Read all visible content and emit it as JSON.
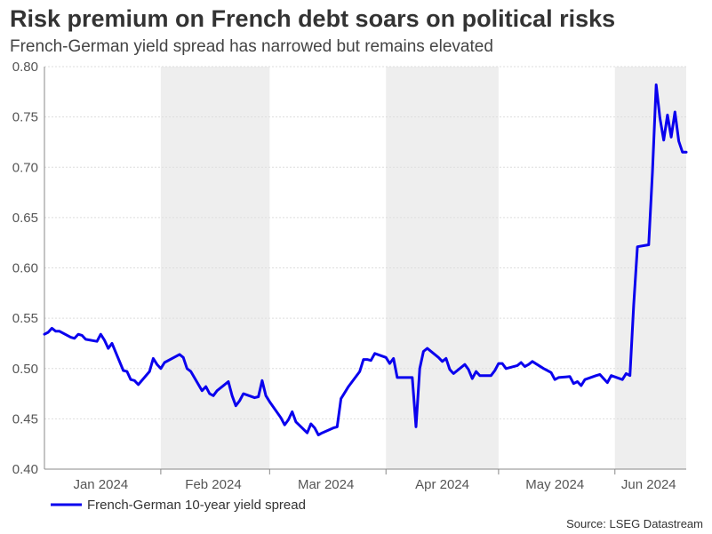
{
  "title": "Risk premium on French debt soars on political risks",
  "subtitle": "French-German yield spread has narrowed but remains elevated",
  "source": "Source: LSEG Datastream",
  "colors": {
    "line": "#0a00ee",
    "band": "#eeeeee",
    "grid": "#dddddd",
    "axis": "#888888"
  },
  "chart_data": {
    "type": "line",
    "title": "Risk premium on French debt soars on political risks",
    "subtitle": "French-German yield spread has narrowed but remains elevated",
    "xlabel": "",
    "ylabel": "",
    "x_range": [
      "2024-01-01",
      "2024-06-20"
    ],
    "ylim": [
      0.4,
      0.8
    ],
    "yticks": [
      0.4,
      0.45,
      0.5,
      0.55,
      0.6,
      0.65,
      0.7,
      0.75,
      0.8
    ],
    "ytick_labels": [
      "0.40",
      "0.45",
      "0.50",
      "0.55",
      "0.60",
      "0.65",
      "0.70",
      "0.75",
      "0.80"
    ],
    "month_labels": [
      {
        "date": "2024-01-16",
        "label": "Jan 2024"
      },
      {
        "date": "2024-02-15",
        "label": "Feb 2024"
      },
      {
        "date": "2024-03-16",
        "label": "Mar 2024"
      },
      {
        "date": "2024-04-16",
        "label": "Apr 2024"
      },
      {
        "date": "2024-05-16",
        "label": "May 2024"
      },
      {
        "date": "2024-06-10",
        "label": "Jun 2024"
      }
    ],
    "shaded_months": [
      {
        "start": "2024-02-01",
        "end": "2024-03-01"
      },
      {
        "start": "2024-04-01",
        "end": "2024-05-01"
      },
      {
        "start": "2024-06-01",
        "end": "2024-06-20"
      }
    ],
    "grid": true,
    "legend_position": "bottom-left",
    "series": [
      {
        "name": "French-German 10-year yield spread",
        "points": [
          [
            "2024-01-01",
            0.534
          ],
          [
            "2024-01-02",
            0.536
          ],
          [
            "2024-01-03",
            0.54
          ],
          [
            "2024-01-04",
            0.537
          ],
          [
            "2024-01-05",
            0.537
          ],
          [
            "2024-01-08",
            0.531
          ],
          [
            "2024-01-09",
            0.53
          ],
          [
            "2024-01-10",
            0.534
          ],
          [
            "2024-01-11",
            0.533
          ],
          [
            "2024-01-12",
            0.529
          ],
          [
            "2024-01-15",
            0.527
          ],
          [
            "2024-01-16",
            0.534
          ],
          [
            "2024-01-17",
            0.528
          ],
          [
            "2024-01-18",
            0.52
          ],
          [
            "2024-01-19",
            0.525
          ],
          [
            "2024-01-22",
            0.498
          ],
          [
            "2024-01-23",
            0.497
          ],
          [
            "2024-01-24",
            0.489
          ],
          [
            "2024-01-25",
            0.488
          ],
          [
            "2024-01-26",
            0.484
          ],
          [
            "2024-01-29",
            0.497
          ],
          [
            "2024-01-30",
            0.51
          ],
          [
            "2024-01-31",
            0.504
          ],
          [
            "2024-02-01",
            0.5
          ],
          [
            "2024-02-02",
            0.506
          ],
          [
            "2024-02-05",
            0.512
          ],
          [
            "2024-02-06",
            0.514
          ],
          [
            "2024-02-07",
            0.511
          ],
          [
            "2024-02-08",
            0.5
          ],
          [
            "2024-02-09",
            0.497
          ],
          [
            "2024-02-12",
            0.478
          ],
          [
            "2024-02-13",
            0.482
          ],
          [
            "2024-02-14",
            0.475
          ],
          [
            "2024-02-15",
            0.473
          ],
          [
            "2024-02-16",
            0.478
          ],
          [
            "2024-02-19",
            0.487
          ],
          [
            "2024-02-20",
            0.473
          ],
          [
            "2024-02-21",
            0.463
          ],
          [
            "2024-02-22",
            0.468
          ],
          [
            "2024-02-23",
            0.475
          ],
          [
            "2024-02-26",
            0.471
          ],
          [
            "2024-02-27",
            0.472
          ],
          [
            "2024-02-28",
            0.488
          ],
          [
            "2024-02-29",
            0.473
          ],
          [
            "2024-03-01",
            0.467
          ],
          [
            "2024-03-04",
            0.451
          ],
          [
            "2024-03-05",
            0.444
          ],
          [
            "2024-03-06",
            0.449
          ],
          [
            "2024-03-07",
            0.457
          ],
          [
            "2024-03-08",
            0.447
          ],
          [
            "2024-03-11",
            0.436
          ],
          [
            "2024-03-12",
            0.445
          ],
          [
            "2024-03-13",
            0.441
          ],
          [
            "2024-03-14",
            0.434
          ],
          [
            "2024-03-15",
            0.436
          ],
          [
            "2024-03-18",
            0.441
          ],
          [
            "2024-03-19",
            0.442
          ],
          [
            "2024-03-20",
            0.47
          ],
          [
            "2024-03-21",
            0.476
          ],
          [
            "2024-03-22",
            0.482
          ],
          [
            "2024-03-25",
            0.497
          ],
          [
            "2024-03-26",
            0.509
          ],
          [
            "2024-03-27",
            0.509
          ],
          [
            "2024-03-28",
            0.508
          ],
          [
            "2024-03-29",
            0.515
          ],
          [
            "2024-04-01",
            0.511
          ],
          [
            "2024-04-02",
            0.505
          ],
          [
            "2024-04-03",
            0.51
          ],
          [
            "2024-04-04",
            0.491
          ],
          [
            "2024-04-05",
            0.491
          ],
          [
            "2024-04-08",
            0.491
          ],
          [
            "2024-04-09",
            0.442
          ],
          [
            "2024-04-10",
            0.5
          ],
          [
            "2024-04-11",
            0.517
          ],
          [
            "2024-04-12",
            0.52
          ],
          [
            "2024-04-15",
            0.511
          ],
          [
            "2024-04-16",
            0.507
          ],
          [
            "2024-04-17",
            0.51
          ],
          [
            "2024-04-18",
            0.499
          ],
          [
            "2024-04-19",
            0.495
          ],
          [
            "2024-04-22",
            0.504
          ],
          [
            "2024-04-23",
            0.499
          ],
          [
            "2024-04-24",
            0.49
          ],
          [
            "2024-04-25",
            0.497
          ],
          [
            "2024-04-26",
            0.493
          ],
          [
            "2024-04-29",
            0.493
          ],
          [
            "2024-04-30",
            0.498
          ],
          [
            "2024-05-01",
            0.505
          ],
          [
            "2024-05-02",
            0.505
          ],
          [
            "2024-05-03",
            0.5
          ],
          [
            "2024-05-06",
            0.503
          ],
          [
            "2024-05-07",
            0.506
          ],
          [
            "2024-05-08",
            0.502
          ],
          [
            "2024-05-09",
            0.504
          ],
          [
            "2024-05-10",
            0.507
          ],
          [
            "2024-05-13",
            0.5
          ],
          [
            "2024-05-14",
            0.498
          ],
          [
            "2024-05-15",
            0.496
          ],
          [
            "2024-05-16",
            0.489
          ],
          [
            "2024-05-17",
            0.491
          ],
          [
            "2024-05-20",
            0.492
          ],
          [
            "2024-05-21",
            0.485
          ],
          [
            "2024-05-22",
            0.487
          ],
          [
            "2024-05-23",
            0.483
          ],
          [
            "2024-05-24",
            0.489
          ],
          [
            "2024-05-27",
            0.493
          ],
          [
            "2024-05-28",
            0.494
          ],
          [
            "2024-05-29",
            0.49
          ],
          [
            "2024-05-30",
            0.486
          ],
          [
            "2024-05-31",
            0.493
          ],
          [
            "2024-06-03",
            0.489
          ],
          [
            "2024-06-04",
            0.495
          ],
          [
            "2024-06-05",
            0.493
          ],
          [
            "2024-06-06",
            0.563
          ],
          [
            "2024-06-07",
            0.621
          ],
          [
            "2024-06-10",
            0.623
          ],
          [
            "2024-06-11",
            0.695
          ],
          [
            "2024-06-12",
            0.782
          ],
          [
            "2024-06-13",
            0.749
          ],
          [
            "2024-06-14",
            0.727
          ],
          [
            "2024-06-15",
            0.752
          ],
          [
            "2024-06-16",
            0.73
          ],
          [
            "2024-06-17",
            0.755
          ],
          [
            "2024-06-18",
            0.726
          ],
          [
            "2024-06-19",
            0.715
          ],
          [
            "2024-06-20",
            0.715
          ]
        ]
      }
    ]
  }
}
